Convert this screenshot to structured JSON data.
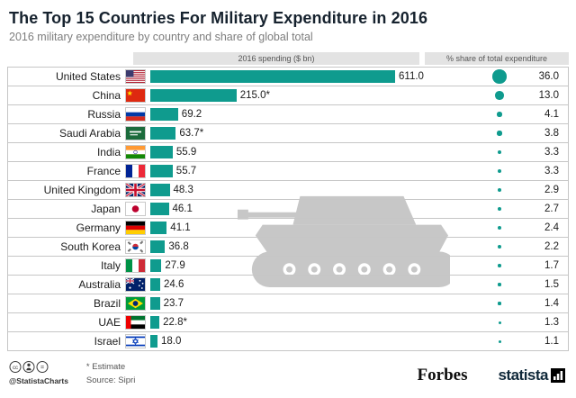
{
  "header": {
    "title": "The Top 15 Countries For Military Expenditure in 2016",
    "subtitle": "2016 military expenditure by country and share of global total"
  },
  "columns": {
    "spending_header": "2016 spending ($ bn)",
    "share_header": "% share of total expenditure"
  },
  "chart_data": {
    "type": "bar",
    "title": "The Top 15 Countries For Military Expenditure in 2016",
    "subtitle": "2016 military expenditure by country and share of global total",
    "orientation": "horizontal",
    "categories": [
      "United States",
      "China",
      "Russia",
      "Saudi Arabia",
      "India",
      "France",
      "United Kingdom",
      "Japan",
      "Germany",
      "South Korea",
      "Italy",
      "Australia",
      "Brazil",
      "UAE",
      "Israel"
    ],
    "series": [
      {
        "name": "2016 spending ($ bn)",
        "values": [
          611.0,
          215.0,
          69.2,
          63.7,
          55.9,
          55.7,
          48.3,
          46.1,
          41.1,
          36.8,
          27.9,
          24.6,
          23.7,
          22.8,
          18.0
        ]
      },
      {
        "name": "% share of total expenditure",
        "values": [
          36.0,
          13.0,
          4.1,
          3.8,
          3.3,
          3.3,
          2.9,
          2.7,
          2.4,
          2.2,
          1.7,
          1.5,
          1.4,
          1.3,
          1.1
        ]
      }
    ],
    "spending_labels": [
      "611.0",
      "215.0*",
      "69.2",
      "63.7*",
      "55.9",
      "55.7",
      "48.3",
      "46.1",
      "41.1",
      "36.8",
      "27.9",
      "24.6",
      "23.7",
      "22.8*",
      "18.0"
    ],
    "share_labels": [
      "36.0",
      "13.0",
      "4.1",
      "3.8",
      "3.3",
      "3.3",
      "2.9",
      "2.7",
      "2.4",
      "2.2",
      "1.7",
      "1.5",
      "1.4",
      "1.3",
      "1.1"
    ],
    "flags": [
      "us",
      "cn",
      "ru",
      "sa",
      "in",
      "fr",
      "gb",
      "jp",
      "de",
      "kr",
      "it",
      "au",
      "br",
      "ae",
      "il"
    ],
    "estimated": [
      false,
      true,
      false,
      true,
      false,
      false,
      false,
      false,
      false,
      false,
      false,
      false,
      false,
      true,
      false
    ],
    "bar_color": "#0f9b8e",
    "dot_color": "#0f9b8e",
    "xlim": [
      0,
      650
    ],
    "legend_position": "none",
    "grid": false
  },
  "footer": {
    "estimate_note": "* Estimate",
    "source": "Source: Sipri",
    "credit": "@StatistaCharts",
    "brand_left": "Forbes",
    "brand_right": "statista"
  },
  "colors": {
    "bar": "#0f9b8e",
    "band": "#e3e3e3",
    "watermark": "#c7c7c7"
  }
}
